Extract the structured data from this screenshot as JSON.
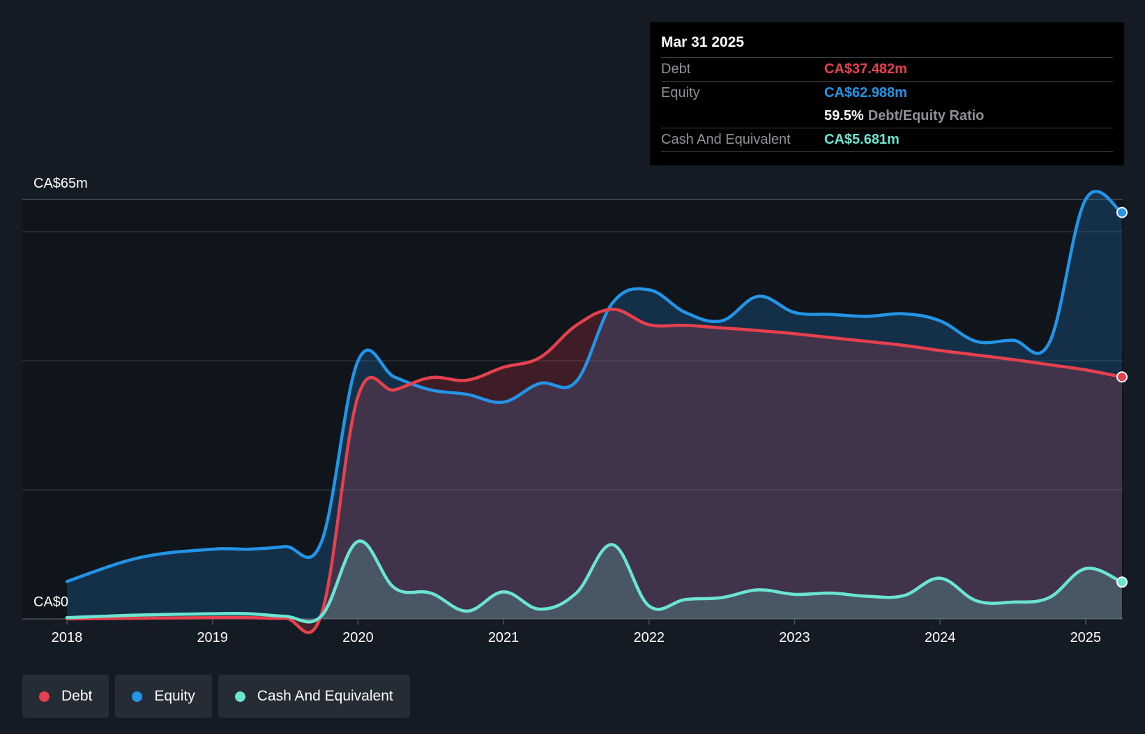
{
  "colors": {
    "debt": "#e5404d",
    "equity": "#2394e6",
    "cash": "#6be5d1",
    "background": "#151b24",
    "plot_background": "#10141b"
  },
  "tooltip": {
    "date": "Mar 31 2025",
    "debt_label": "Debt",
    "debt_value": "CA$37.482m",
    "equity_label": "Equity",
    "equity_value": "CA$62.988m",
    "ratio_value": "59.5%",
    "ratio_label": "Debt/Equity Ratio",
    "cash_label": "Cash And Equivalent",
    "cash_value": "CA$5.681m"
  },
  "legend": [
    {
      "label": "Debt",
      "color_key": "debt"
    },
    {
      "label": "Equity",
      "color_key": "equity"
    },
    {
      "label": "Cash And Equivalent",
      "color_key": "cash"
    }
  ],
  "chart_data": {
    "type": "area",
    "y_top_label": "CA$65m",
    "y_bottom_label": "CA$0",
    "ylim": [
      0,
      65
    ],
    "xlim": [
      2018,
      2025.25
    ],
    "x_ticks": [
      "2018",
      "2019",
      "2020",
      "2021",
      "2022",
      "2023",
      "2024",
      "2025"
    ],
    "grid": true,
    "legend_position": "bottom-left",
    "series": [
      {
        "name": "Debt",
        "color_key": "debt",
        "x": [
          2018,
          2018.5,
          2019,
          2019.25,
          2019.5,
          2019.75,
          2020,
          2020.25,
          2020.5,
          2020.75,
          2021,
          2021.25,
          2021.5,
          2021.75,
          2022,
          2022.25,
          2022.5,
          2022.75,
          2023,
          2023.25,
          2023.5,
          2023.75,
          2024,
          2024.25,
          2024.5,
          2024.75,
          2025,
          2025.25
        ],
        "values": [
          0.0,
          0.1,
          0.2,
          0.2,
          0.1,
          0.8,
          34.5,
          35.5,
          37.4,
          37.0,
          39.0,
          40.5,
          45.5,
          48.0,
          45.6,
          45.5,
          45.1,
          44.7,
          44.2,
          43.6,
          43.0,
          42.4,
          41.6,
          40.9,
          40.2,
          39.4,
          38.6,
          37.5
        ]
      },
      {
        "name": "Equity",
        "color_key": "equity",
        "x": [
          2018,
          2018.5,
          2019,
          2019.25,
          2019.5,
          2019.75,
          2020,
          2020.25,
          2020.5,
          2020.75,
          2021,
          2021.25,
          2021.5,
          2021.75,
          2022,
          2022.25,
          2022.5,
          2022.75,
          2023,
          2023.25,
          2023.5,
          2023.75,
          2024,
          2024.25,
          2024.5,
          2024.75,
          2025,
          2025.25
        ],
        "values": [
          5.8,
          9.5,
          10.8,
          10.8,
          11.2,
          12.0,
          40.0,
          37.5,
          35.5,
          34.8,
          33.6,
          36.5,
          36.8,
          49.0,
          51.0,
          47.5,
          46.2,
          50.0,
          47.5,
          47.2,
          46.9,
          47.3,
          46.2,
          43.0,
          43.2,
          42.8,
          65.0,
          63.0
        ]
      },
      {
        "name": "Cash And Equivalent",
        "color_key": "cash",
        "x": [
          2018,
          2018.25,
          2018.5,
          2019,
          2019.25,
          2019.5,
          2019.75,
          2020,
          2020.25,
          2020.5,
          2020.75,
          2021,
          2021.25,
          2021.5,
          2021.75,
          2022,
          2022.25,
          2022.5,
          2022.75,
          2023,
          2023.25,
          2023.5,
          2023.75,
          2024,
          2024.25,
          2024.5,
          2024.75,
          2025,
          2025.25
        ],
        "values": [
          0.2,
          0.4,
          0.6,
          0.8,
          0.8,
          0.4,
          0.5,
          12.0,
          4.8,
          4.0,
          1.2,
          4.2,
          1.5,
          4.0,
          11.5,
          2.0,
          3.0,
          3.3,
          4.5,
          3.8,
          4.0,
          3.5,
          3.6,
          6.3,
          2.8,
          2.6,
          3.3,
          7.8,
          5.7
        ]
      }
    ]
  }
}
